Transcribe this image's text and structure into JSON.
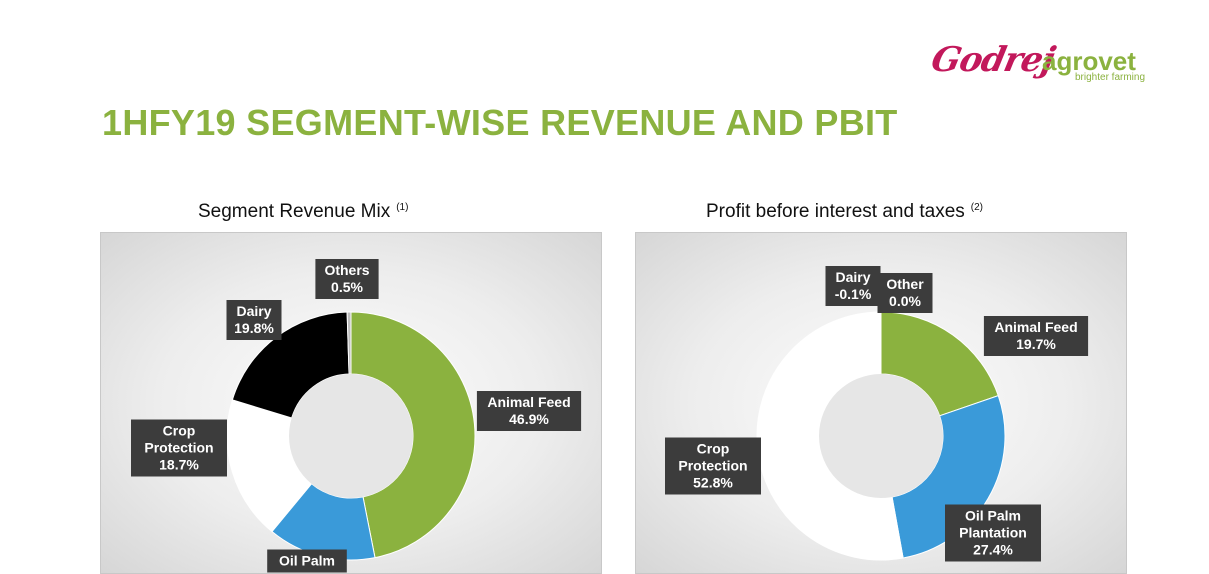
{
  "header": {
    "logo_brand": "Godrej",
    "logo_name": "agrovet",
    "logo_tagline": "brighter farming",
    "title": "1HFY19 SEGMENT-WISE REVENUE AND PBIT"
  },
  "colors": {
    "title_green": "#8bb23f",
    "animal_feed": "#8bb23f",
    "oil_palm": "#3a9ad9",
    "crop_protection": "#ffffff",
    "dairy": "#000000",
    "others": "#bdbdbd",
    "label_bg": "#3c3c3c"
  },
  "chart_data": [
    {
      "type": "pie",
      "title": "Segment Revenue Mix",
      "footnote": "(1)",
      "slices": [
        {
          "key": "animal_feed",
          "lines": [
            "Animal Feed"
          ],
          "value": 46.9,
          "label_value": "46.9%"
        },
        {
          "key": "oil_palm",
          "lines": [
            "Oil Palm"
          ],
          "value": 14.1,
          "label_value": ""
        },
        {
          "key": "crop_protection",
          "lines": [
            "Crop",
            "Protection"
          ],
          "value": 18.7,
          "label_value": "18.7%"
        },
        {
          "key": "dairy",
          "lines": [
            "Dairy"
          ],
          "value": 19.8,
          "label_value": "19.8%"
        },
        {
          "key": "others",
          "lines": [
            "Others"
          ],
          "value": 0.5,
          "label_value": "0.5%"
        }
      ]
    },
    {
      "type": "pie",
      "title": "Profit before interest and taxes",
      "footnote": "(2)",
      "slices": [
        {
          "key": "animal_feed",
          "lines": [
            "Animal Feed"
          ],
          "value": 19.7,
          "label_value": "19.7%"
        },
        {
          "key": "oil_palm",
          "lines": [
            "Oil Palm",
            "Plantation"
          ],
          "value": 27.4,
          "label_value": "27.4%"
        },
        {
          "key": "crop_protection",
          "lines": [
            "Crop",
            "Protection"
          ],
          "value": 52.8,
          "label_value": "52.8%"
        },
        {
          "key": "dairy",
          "lines": [
            "Dairy"
          ],
          "value": -0.1,
          "label_value": "-0.1%"
        },
        {
          "key": "others",
          "lines": [
            "Other"
          ],
          "value": 0.0,
          "label_value": "0.0%"
        }
      ]
    }
  ]
}
